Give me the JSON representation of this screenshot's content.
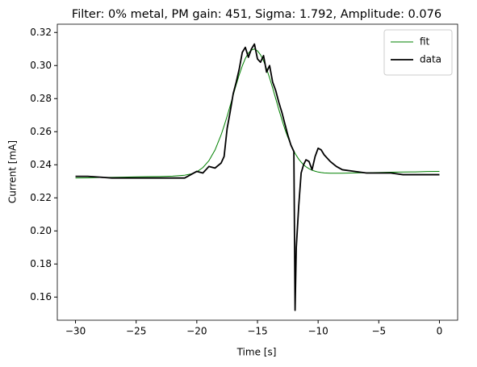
{
  "chart_data": {
    "type": "line",
    "title": "Filter: 0% metal, PM gain: 451, Sigma: 1.792, Amplitude: 0.076",
    "xlabel": "Time [s]",
    "ylabel": "Current [mA]",
    "x": [
      -30,
      -29,
      -28,
      -27,
      -26,
      -25,
      -24,
      -23,
      -22,
      -21,
      -20.5,
      -20,
      -19.5,
      -19,
      -18.5,
      -18,
      -17.75,
      -17.5,
      -17.25,
      -17,
      -16.75,
      -16.5,
      -16.25,
      -16,
      -15.75,
      -15.5,
      -15.25,
      -15,
      -14.75,
      -14.5,
      -14.25,
      -14,
      -13.75,
      -13.5,
      -13.25,
      -13,
      -12.75,
      -12.5,
      -12.25,
      -12,
      -11.9,
      -11.8,
      -11.6,
      -11.4,
      -11.2,
      -11,
      -10.75,
      -10.5,
      -10.25,
      -10,
      -9.75,
      -9.5,
      -9,
      -8.5,
      -8,
      -7,
      -6,
      -5,
      -4,
      -3,
      -2,
      -1,
      0
    ],
    "series": [
      {
        "name": "fit",
        "color": "#008000",
        "width": 1,
        "values": [
          0.232,
          0.2321,
          0.2323,
          0.2324,
          0.2325,
          0.2327,
          0.2328,
          0.2329,
          0.2331,
          0.2337,
          0.2344,
          0.2357,
          0.2383,
          0.2425,
          0.2489,
          0.258,
          0.2635,
          0.2694,
          0.2757,
          0.2821,
          0.2885,
          0.2945,
          0.2998,
          0.3043,
          0.3075,
          0.3094,
          0.31,
          0.3089,
          0.3065,
          0.3029,
          0.2981,
          0.2925,
          0.2865,
          0.2801,
          0.2737,
          0.2676,
          0.2618,
          0.2567,
          0.2522,
          0.2484,
          0.2469,
          0.2457,
          0.2434,
          0.2416,
          0.24,
          0.2388,
          0.2376,
          0.2367,
          0.2361,
          0.2356,
          0.2353,
          0.2351,
          0.2349,
          0.2349,
          0.2349,
          0.2351,
          0.2352,
          0.2353,
          0.2355,
          0.2356,
          0.2357,
          0.2359,
          0.236
        ]
      },
      {
        "name": "data",
        "color": "#000000",
        "width": 1.8,
        "values": [
          0.233,
          0.233,
          0.2325,
          0.232,
          0.232,
          0.232,
          0.232,
          0.232,
          0.232,
          0.232,
          0.234,
          0.236,
          0.235,
          0.239,
          0.238,
          0.241,
          0.245,
          0.262,
          0.272,
          0.283,
          0.29,
          0.298,
          0.308,
          0.311,
          0.305,
          0.31,
          0.313,
          0.304,
          0.302,
          0.306,
          0.296,
          0.3,
          0.29,
          0.285,
          0.278,
          0.272,
          0.265,
          0.258,
          0.252,
          0.248,
          0.152,
          0.19,
          0.215,
          0.235,
          0.24,
          0.243,
          0.242,
          0.237,
          0.245,
          0.25,
          0.249,
          0.246,
          0.242,
          0.239,
          0.237,
          0.236,
          0.235,
          0.235,
          0.235,
          0.234,
          0.234,
          0.234,
          0.234
        ]
      }
    ],
    "xlim": [
      -31.5,
      1.5
    ],
    "ylim": [
      0.146,
      0.325
    ],
    "xticks": [
      {
        "value": -30,
        "label": "−30"
      },
      {
        "value": -25,
        "label": "−25"
      },
      {
        "value": -20,
        "label": "−20"
      },
      {
        "value": -15,
        "label": "−15"
      },
      {
        "value": -10,
        "label": "−10"
      },
      {
        "value": -5,
        "label": "−5"
      },
      0
    ],
    "yticks": [
      0.16,
      0.18,
      {
        "value": 0.2,
        "label": "0.20"
      },
      0.22,
      0.24,
      0.26,
      0.28,
      {
        "value": 0.3,
        "label": "0.30"
      },
      0.32
    ],
    "legend": "upper right"
  }
}
